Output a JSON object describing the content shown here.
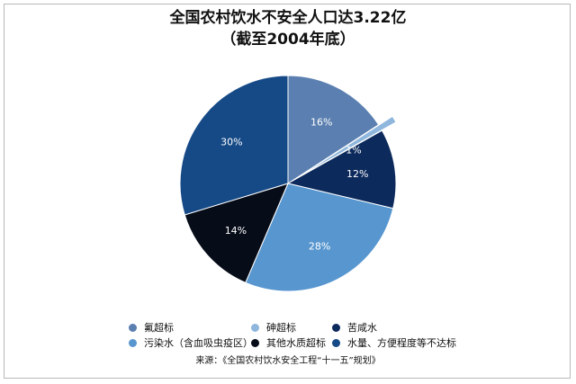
{
  "chart_data": {
    "type": "pie",
    "title": "全国农村饮水不安全人口达3.22亿",
    "subtitle": "（截至2004年底）",
    "categories": [
      "氟超标",
      "砷超标",
      "苦咸水",
      "污染水（含血吸虫疫区）",
      "其他水质超标",
      "水量、方便程度等不达标"
    ],
    "values": [
      16,
      1,
      12,
      28,
      14,
      30
    ],
    "labels": [
      "16%",
      "1%",
      "12%",
      "28%",
      "14%",
      "30%"
    ],
    "colors": [
      "#5b7fb0",
      "#8fb6dc",
      "#0c2a5c",
      "#5796cf",
      "#060c18",
      "#164a87"
    ],
    "exploded": [
      false,
      true,
      false,
      false,
      false,
      false
    ],
    "legend_position": "bottom"
  },
  "source": "来源：《全国农村饮水安全工程“十一五”规划》"
}
